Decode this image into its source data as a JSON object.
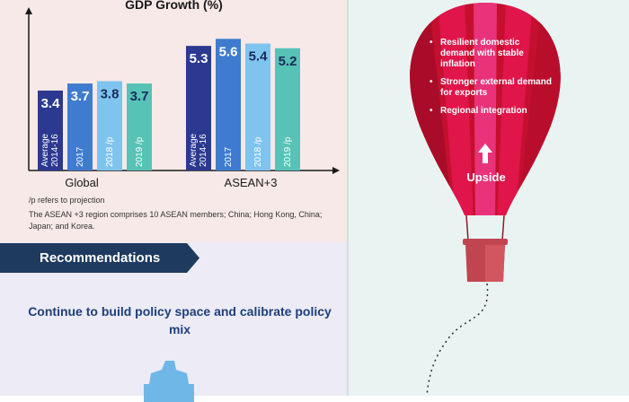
{
  "chart_data": {
    "type": "bar",
    "title": "GDP Growth (%)",
    "groups": [
      {
        "name": "Global",
        "bars": [
          {
            "label": "Average 2014-16",
            "value": 3.4,
            "display": "3.4",
            "color": "#2b3990"
          },
          {
            "label": "2017",
            "value": 3.7,
            "display": "3.7",
            "color": "#3f7ccf"
          },
          {
            "label": "2018 /p",
            "value": 3.8,
            "display": "3.8",
            "color": "#7fc4ef"
          },
          {
            "label": "2019 /p",
            "value": 3.7,
            "display": "3.7",
            "color": "#56c3b6"
          }
        ]
      },
      {
        "name": "ASEAN+3",
        "bars": [
          {
            "label": "Average 2014-16",
            "value": 5.3,
            "display": "5.3",
            "color": "#2b3990"
          },
          {
            "label": "2017",
            "value": 5.6,
            "display": "5.6",
            "color": "#3f7ccf"
          },
          {
            "label": "2018 /p",
            "value": 5.4,
            "display": "5.4",
            "color": "#7fc4ef"
          },
          {
            "label": "2019 /p",
            "value": 5.2,
            "display": "5.2",
            "color": "#56c3b6"
          }
        ]
      }
    ]
  },
  "notes": [
    "/p refers to projection",
    "The ASEAN +3 region comprises 10 ASEAN members; China; Hong Kong, China; Japan; and Korea."
  ],
  "recommendations": {
    "heading": "Recommendations",
    "text": "Continue to build policy space and calibrate policy mix",
    "icon": "gear-icon"
  },
  "balloon": {
    "items": [
      "Resilient domestic demand with stable inflation",
      "Stronger external demand for exports",
      "Regional integration"
    ],
    "label": "Upside",
    "icon": "up-arrow-icon"
  },
  "colors": {
    "balloon_red": "#d0103a",
    "balloon_pink": "#e8337a",
    "navy": "#1e3a5f",
    "title_blue": "#1e3f7a",
    "gear": "#6fb7e6"
  }
}
